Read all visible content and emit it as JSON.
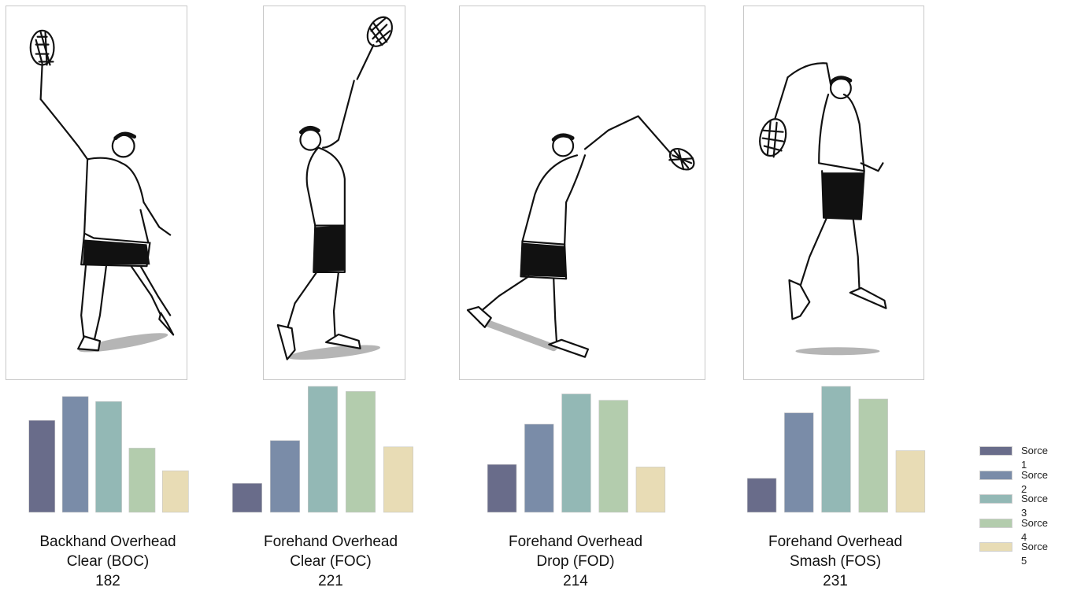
{
  "series": [
    {
      "name": "Sorce 1",
      "color": "#696c8a"
    },
    {
      "name": "Sorce 2",
      "color": "#7a8ca8"
    },
    {
      "name": "Sorce 3",
      "color": "#93b8b5"
    },
    {
      "name": "Sorce 4",
      "color": "#b3ccad"
    },
    {
      "name": "Sorce 5",
      "color": "#e8dcb5"
    }
  ],
  "panels": [
    {
      "title_line1": "Backhand Overhead",
      "title_line2": "Clear (BOC)",
      "count": "182",
      "illustration": "backhand-overhead-clear-player"
    },
    {
      "title_line1": "Forehand Overhead",
      "title_line2": "Clear (FOC)",
      "count": "221",
      "illustration": "forehand-overhead-clear-player"
    },
    {
      "title_line1": "Forehand Overhead",
      "title_line2": "Drop (FOD)",
      "count": "214",
      "illustration": "forehand-overhead-drop-player"
    },
    {
      "title_line1": "Forehand Overhead",
      "title_line2": "Smash (FOS)",
      "count": "231",
      "illustration": "forehand-overhead-smash-player"
    }
  ],
  "chart_data": [
    {
      "type": "bar",
      "categories": [
        "Sorce 1",
        "Sorce 2",
        "Sorce 3",
        "Sorce 4",
        "Sorce 5"
      ],
      "values": [
        0.73,
        0.92,
        0.88,
        0.51,
        0.33
      ],
      "ylim": [
        0,
        1
      ],
      "grid": false,
      "legend": "right"
    },
    {
      "type": "bar",
      "categories": [
        "Sorce 1",
        "Sorce 2",
        "Sorce 3",
        "Sorce 4",
        "Sorce 5"
      ],
      "values": [
        0.23,
        0.57,
        1.0,
        0.96,
        0.52
      ],
      "ylim": [
        0,
        1
      ],
      "grid": false,
      "legend": "right"
    },
    {
      "type": "bar",
      "categories": [
        "Sorce 1",
        "Sorce 2",
        "Sorce 3",
        "Sorce 4",
        "Sorce 5"
      ],
      "values": [
        0.38,
        0.7,
        0.94,
        0.89,
        0.36
      ],
      "ylim": [
        0,
        1
      ],
      "grid": false,
      "legend": "right"
    },
    {
      "type": "bar",
      "categories": [
        "Sorce 1",
        "Sorce 2",
        "Sorce 3",
        "Sorce 4",
        "Sorce 5"
      ],
      "values": [
        0.27,
        0.79,
        1.0,
        0.9,
        0.49
      ],
      "ylim": [
        0,
        1
      ],
      "grid": false,
      "legend": "right"
    }
  ]
}
